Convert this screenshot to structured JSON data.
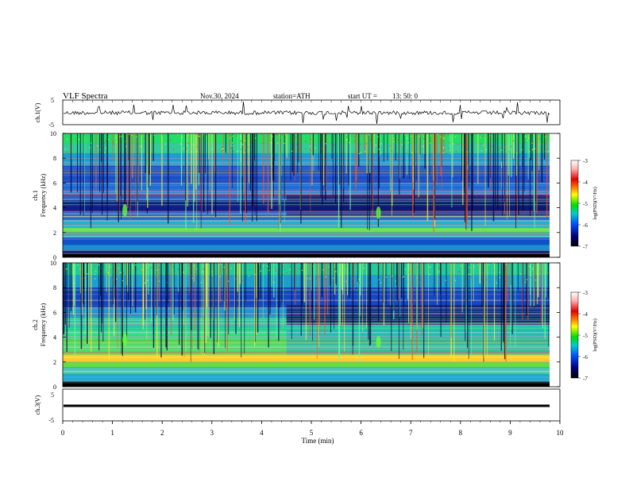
{
  "header": {
    "title": "VLF  Spectra",
    "date": "Nov.30, 2024",
    "station": "station=ATH",
    "start_label": "start  UT  =",
    "start_time": "13: 50: 0"
  },
  "colorbar": {
    "label": "log(PSD)(V²/Hz)",
    "ticks": [
      "-3",
      "-4",
      "-5",
      "-6",
      "-7"
    ],
    "colors": [
      "#ffffff",
      "#ffb0b0",
      "#e00000",
      "#ff8000",
      "#ffff00",
      "#00dd00",
      "#00cccc",
      "#0050ff",
      "#000080",
      "#000000"
    ]
  },
  "chart_data": [
    {
      "type": "line",
      "panel": "ch1",
      "ylabel": "ch.1(V)",
      "ylim": [
        -5,
        5
      ],
      "yticks": [
        "5",
        "-5"
      ],
      "xlim": [
        0,
        10
      ],
      "description_level": 0,
      "series": [
        {
          "values": [
            0,
            0,
            0
          ]
        }
      ]
    },
    {
      "type": "heatmap",
      "panel": "ch1-spectrogram",
      "ylabel": "ch.1\nFrequency  (kHz)",
      "yticks": [
        "10",
        "8",
        "6",
        "4",
        "2",
        "0"
      ],
      "ylim": [
        0,
        10
      ],
      "xlim": [
        0,
        10
      ],
      "quiet_band_start_min": 4.5
    },
    {
      "type": "heatmap",
      "panel": "ch2-spectrogram",
      "ylabel": "ch.2\nFrequency  (kHz)",
      "yticks": [
        "10",
        "8",
        "6",
        "4",
        "2",
        "0"
      ],
      "ylim": [
        0,
        10
      ],
      "xlim": [
        0,
        10
      ],
      "quiet_band_start_min": 4.5
    },
    {
      "type": "line",
      "panel": "ch3",
      "ylabel": "ch.3(V)",
      "ylim": [
        -5,
        5
      ],
      "yticks": [
        "5",
        "-5"
      ],
      "xlim": [
        0,
        10
      ],
      "series": [
        {
          "values": [
            -0.9,
            -0.9
          ]
        }
      ]
    }
  ],
  "xaxis": {
    "label": "Time  (min)",
    "ticks": [
      "0",
      "1",
      "2",
      "3",
      "4",
      "5",
      "6",
      "7",
      "8",
      "9",
      "10"
    ]
  }
}
